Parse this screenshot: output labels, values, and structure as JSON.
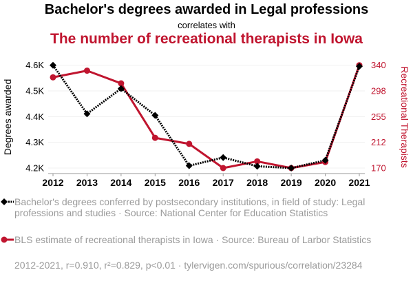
{
  "chart_data": {
    "type": "line",
    "title": "Bachelor's degrees awarded in Legal professions",
    "subtitle_connector": "correlates with",
    "subtitle": "The number of recreational therapists in Iowa",
    "x": [
      2012,
      2013,
      2014,
      2015,
      2016,
      2017,
      2018,
      2019,
      2020,
      2021
    ],
    "x_tick_labels": [
      "2012",
      "2013",
      "2014",
      "2015",
      "2016",
      "2017",
      "2018",
      "2019",
      "2020",
      "2021"
    ],
    "series": [
      {
        "name": "Bachelor's degrees awarded",
        "axis": "left",
        "color": "#000000",
        "marker": "diamond",
        "style": "dotted",
        "values": [
          4600,
          4411,
          4509,
          4405,
          4209,
          4241,
          4207,
          4200,
          4230,
          4596
        ]
      },
      {
        "name": "Recreational Therapists",
        "axis": "right",
        "color": "#c0152f",
        "marker": "circle",
        "style": "solid",
        "values": [
          320,
          331,
          310,
          220,
          210,
          170,
          181,
          170,
          180,
          340
        ]
      }
    ],
    "left_axis": {
      "label": "Degrees awarded",
      "ylim": [
        4200,
        4600
      ],
      "ticks": [
        4600,
        4500,
        4400,
        4300,
        4200
      ],
      "tick_labels": [
        "4.6K",
        "4.5K",
        "4.4K",
        "4.3K",
        "4.2K"
      ]
    },
    "right_axis": {
      "label": "Recreational Therapists",
      "ylim": [
        170,
        340
      ],
      "ticks": [
        340,
        297.5,
        255,
        212.5,
        170
      ],
      "tick_labels": [
        "340",
        "298",
        "255",
        "212",
        "170"
      ]
    },
    "grid": true
  },
  "legend": {
    "series1": "Bachelor's degrees conferred by postsecondary institutions, in field of study: Legal professions and studies · Source: National Center for Education Statistics",
    "series2": "BLS estimate of recreational therapists in Iowa · Source: Bureau of Larbor Statistics"
  },
  "footer": "2012-2021, r=0.910, r²=0.829, p<0.01 · tylervigen.com/spurious/correlation/23284"
}
